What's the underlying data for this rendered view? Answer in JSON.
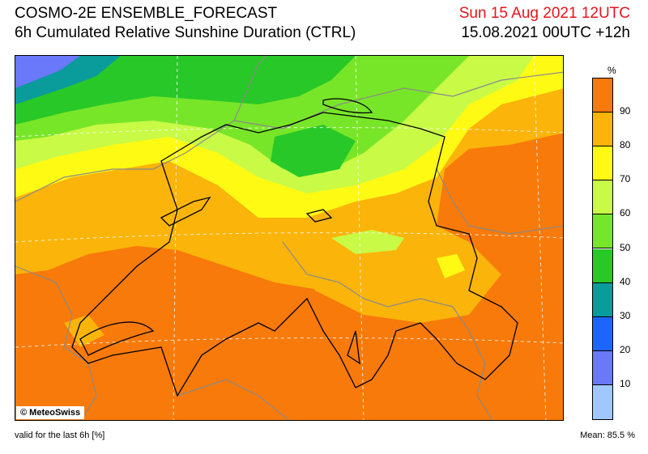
{
  "header": {
    "title": "COSMO-2E ENSEMBLE_FORECAST",
    "subtitle": "6h Cumulated Relative Sunshine Duration (CTRL)",
    "valid_date": "Sun 15 Aug 2021 12UTC",
    "run_info": "15.08.2021 00UTC +12h"
  },
  "map": {
    "copyright": "© MeteoSwiss",
    "colors": {
      "orange_dark": "#f77a0a",
      "orange": "#fbb40a",
      "yellow": "#fffa14",
      "lime": "#c8fa46",
      "green_light": "#78e628",
      "green": "#28c828",
      "teal": "#0a9b9b",
      "blue": "#1e64ff",
      "blue_light": "#6a78fa",
      "blue_pale": "#a0c8ff"
    }
  },
  "legend": {
    "unit": "%",
    "ticks": [
      "90",
      "80",
      "70",
      "60",
      "50",
      "40",
      "30",
      "20",
      "10"
    ],
    "colors": [
      "#f77a0a",
      "#fbb40a",
      "#fffa14",
      "#c8fa46",
      "#78e628",
      "#28c828",
      "#0a9b9b",
      "#1e64ff",
      "#6a78fa",
      "#a0c8ff"
    ]
  },
  "footer": {
    "validity": "valid for the last 6h [%]",
    "mean": "Mean:  85.5 %"
  }
}
